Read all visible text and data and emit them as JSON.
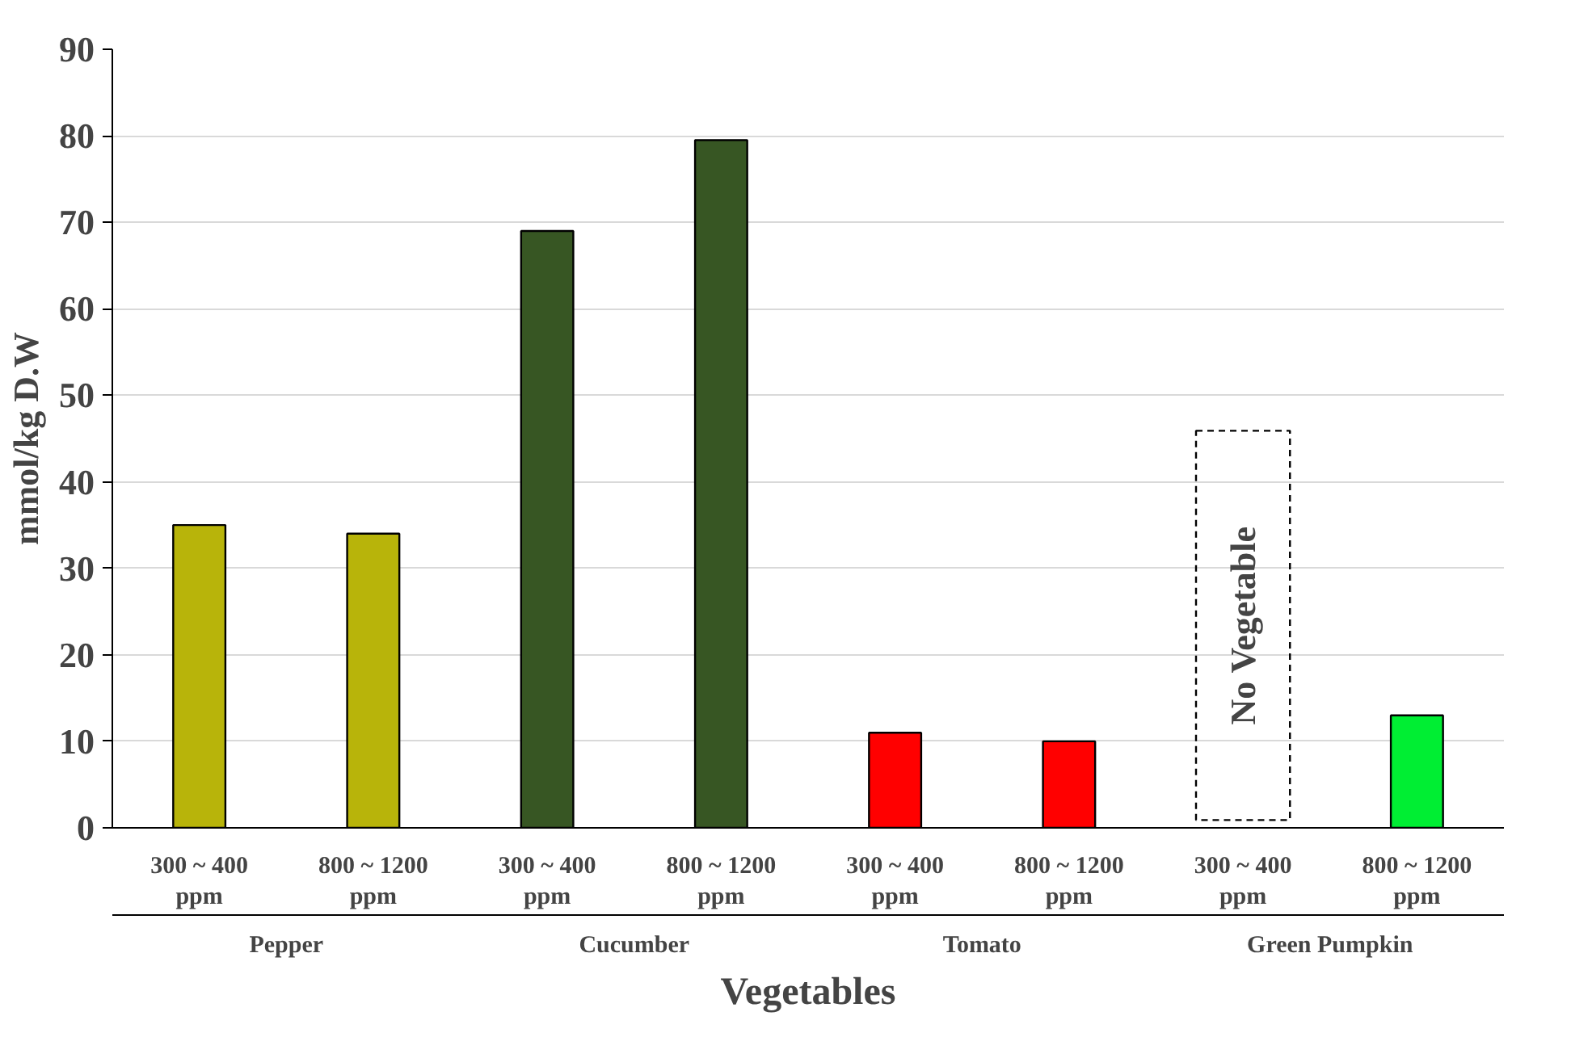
{
  "chart_data": {
    "type": "bar",
    "xlabel": "Vegetables",
    "ylabel": "mmol/kg D.W",
    "categories": [
      "Pepper",
      "Cucumber",
      "Tomato",
      "Green Pumpkin"
    ],
    "series": [
      {
        "name": "300 ~ 400 ppm",
        "colors": [
          "#b8b40a",
          "#375623",
          "#ff0000",
          null
        ],
        "values": [
          35,
          69,
          11,
          null
        ]
      },
      {
        "name": "800 ~ 1200 ppm",
        "colors": [
          "#b8b40a",
          "#375623",
          "#ff0000",
          "#00ee33"
        ],
        "values": [
          34,
          79.5,
          10,
          13
        ]
      }
    ],
    "annotations": [
      "No Vegetable"
    ],
    "ylim": [
      0,
      90
    ],
    "yticks": [
      0,
      10,
      20,
      30,
      40,
      50,
      60,
      70,
      80,
      90
    ],
    "grid": "y"
  }
}
